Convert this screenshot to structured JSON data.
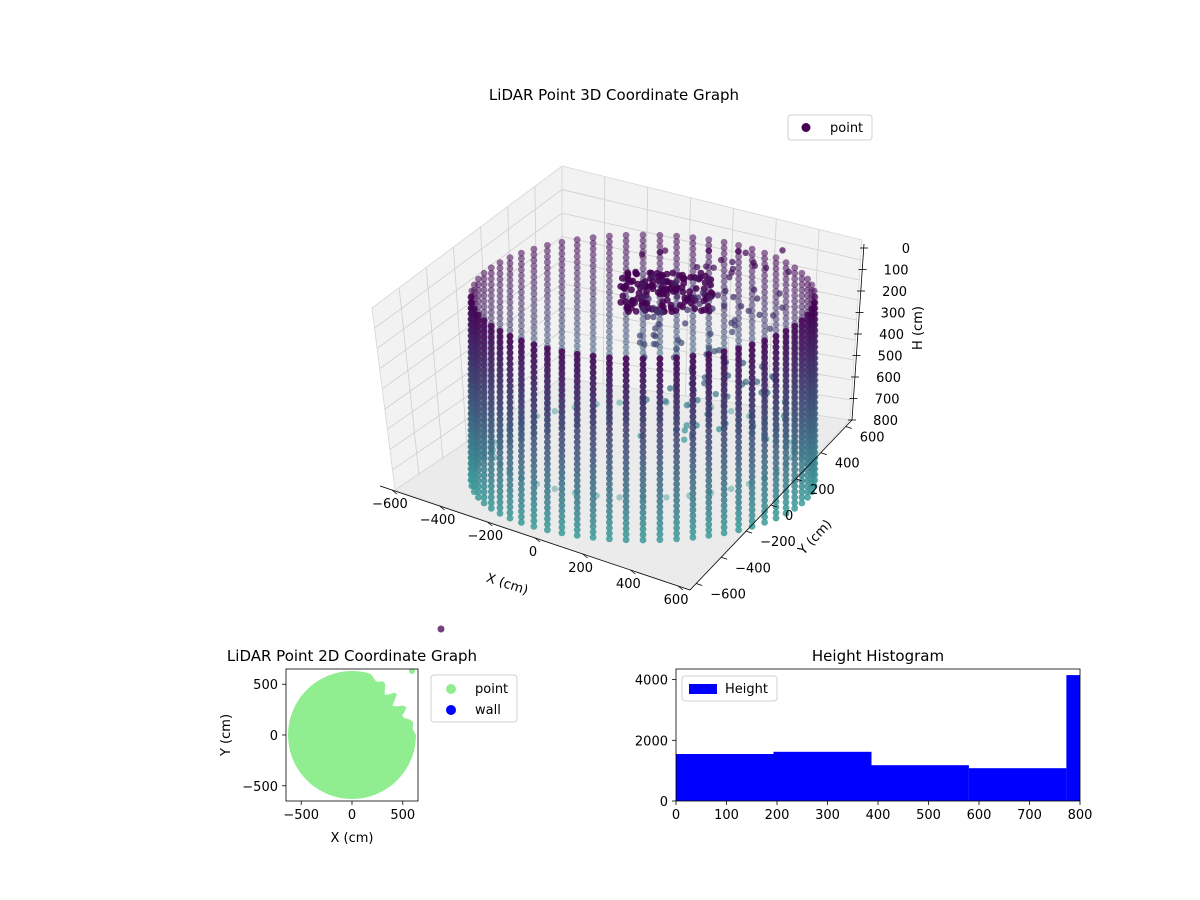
{
  "chart_data": [
    {
      "type": "scatter",
      "title": "LiDAR Point 3D Coordinate Graph",
      "xlabel": "X (cm)",
      "ylabel": "Y (cm)",
      "zlabel": "H (cm)",
      "xlim": [
        -650,
        650
      ],
      "ylim": [
        -650,
        650
      ],
      "zlim": [
        0,
        800
      ],
      "z_inverted": true,
      "xticks": [
        -600,
        -400,
        -200,
        0,
        200,
        400,
        600
      ],
      "yticks": [
        -600,
        -400,
        -200,
        0,
        200,
        400,
        600
      ],
      "zticks": [
        0,
        100,
        200,
        300,
        400,
        500,
        600,
        700,
        800
      ],
      "legend_position": "upper-right",
      "series": [
        {
          "name": "point",
          "color": "#440154",
          "shape": "cylinder",
          "radius_cm": 630,
          "height_cm": 800,
          "colormap_top": "#440154",
          "colormap_bottom": "#3b9a99",
          "notes": "cylindrical wall of points, denser obstacle cluster near x 0..300, y 400..600, h 100..800"
        }
      ]
    },
    {
      "type": "scatter",
      "title": "LiDAR Point 2D Coordinate Graph",
      "xlabel": "X (cm)",
      "ylabel": "Y (cm)",
      "xlim": [
        -650,
        650
      ],
      "ylim": [
        -650,
        650
      ],
      "xticks": [
        -500,
        0,
        500
      ],
      "yticks": [
        -500,
        0,
        500
      ],
      "legend_position": "outside-right",
      "series": [
        {
          "name": "point",
          "color": "#90ee90"
        },
        {
          "name": "wall",
          "color": "#0000ff"
        }
      ]
    },
    {
      "type": "bar",
      "title": "Height Histogram",
      "xlabel": "",
      "ylabel": "",
      "xlim": [
        0,
        800
      ],
      "ylim": [
        0,
        4350
      ],
      "xticks": [
        0,
        100,
        200,
        300,
        400,
        500,
        600,
        700,
        800
      ],
      "yticks": [
        0,
        2000,
        4000
      ],
      "legend_position": "upper-left",
      "series": [
        {
          "name": "Height",
          "color": "#0000ff",
          "bins": [
            {
              "start": 0,
              "end": 193,
              "value": 1550
            },
            {
              "start": 193,
              "end": 387,
              "value": 1620
            },
            {
              "start": 387,
              "end": 580,
              "value": 1180
            },
            {
              "start": 580,
              "end": 773,
              "value": 1080
            },
            {
              "start": 773,
              "end": 800,
              "value": 4150
            }
          ]
        }
      ]
    }
  ]
}
